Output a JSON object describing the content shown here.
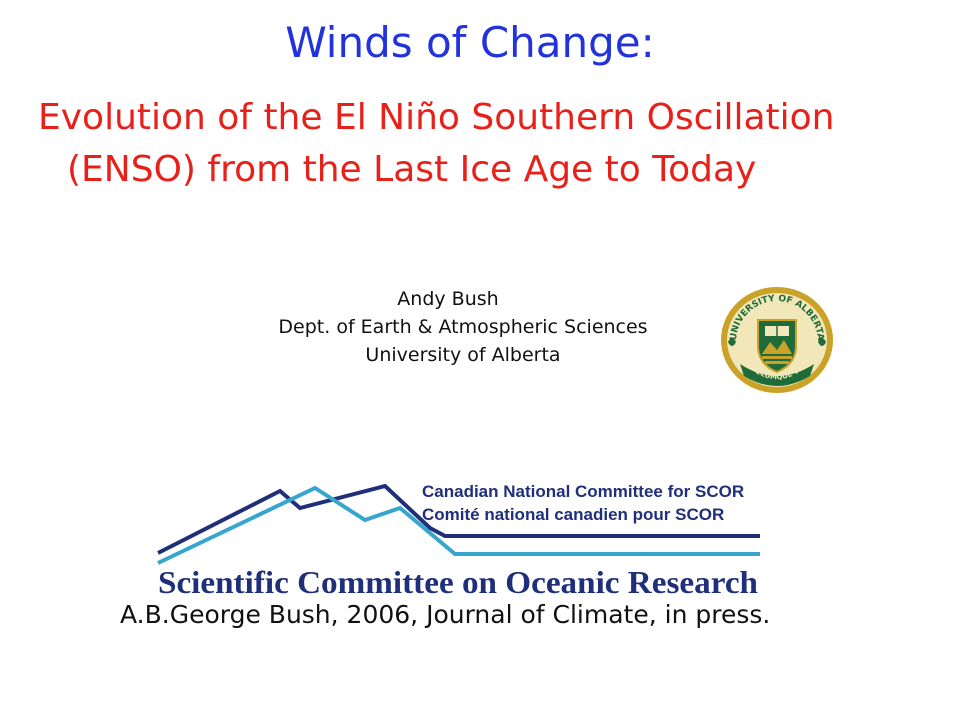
{
  "slide": {
    "title": "Winds of Change:",
    "subtitle_line1": "Evolution of the El Niño Southern Oscillation",
    "subtitle_line2": "(ENSO) from the Last Ice Age to Today",
    "author": {
      "name": "Andy Bush",
      "department": "Dept. of Earth & Atmospheric Sciences",
      "institution": "University of Alberta"
    },
    "citation": "A.B.George Bush, 2006, Journal of Climate, in press."
  },
  "seal": {
    "top_text": "UNIVERSITY OF ALBERTA",
    "motto": "QUAECUMQUE VERA",
    "colors": {
      "gold": "#c9a227",
      "green": "#1f6b3a",
      "ring": "#f2e7b8"
    }
  },
  "scor_logo": {
    "line_en": "Canadian National Committee for SCOR",
    "line_fr": "Comité national canadien pour SCOR",
    "main_text": "Scientific Committee on Oceanic Research",
    "colors": {
      "navy": "#1f2f7a",
      "cyan": "#37a6cf"
    }
  },
  "colors": {
    "title": "#2233dd",
    "subtitle": "#e8201a",
    "body_text": "#111111"
  }
}
